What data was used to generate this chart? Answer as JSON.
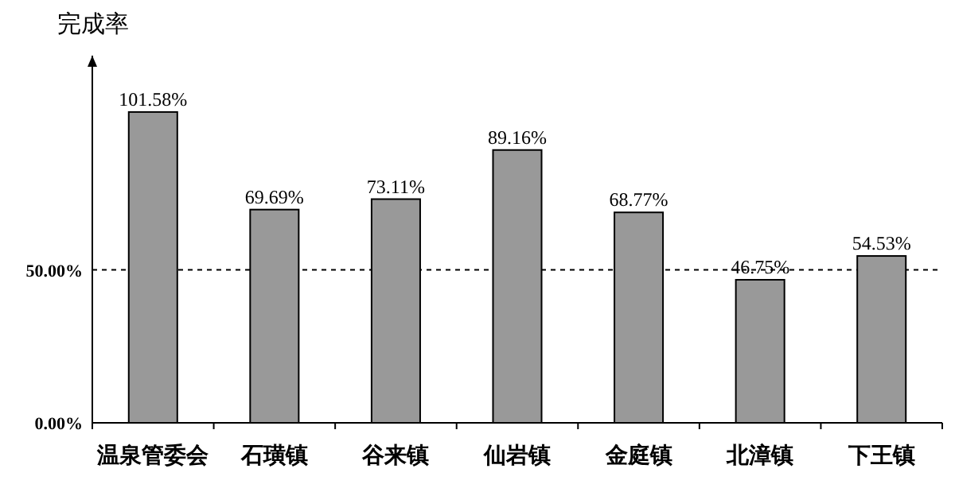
{
  "chart_data": {
    "type": "bar",
    "ylabel": "完成率",
    "categories": [
      "温泉管委会",
      "石璜镇",
      "谷来镇",
      "仙岩镇",
      "金庭镇",
      "北漳镇",
      "下王镇"
    ],
    "values": [
      101.58,
      69.69,
      73.11,
      89.16,
      68.77,
      46.75,
      54.53
    ],
    "value_labels": [
      "101.58%",
      "69.69%",
      "73.11%",
      "89.16%",
      "68.77%",
      "46.75%",
      "54.53%"
    ],
    "color": "#999999",
    "ylim": [
      0,
      120
    ],
    "yticks": [
      {
        "value": 0,
        "label": "0.00%"
      },
      {
        "value": 50,
        "label": "50.00%"
      }
    ],
    "ref_lines": [
      {
        "axis": "y",
        "value": 50,
        "line_style": "dashed",
        "color": "#000000"
      }
    ],
    "grid": false
  }
}
